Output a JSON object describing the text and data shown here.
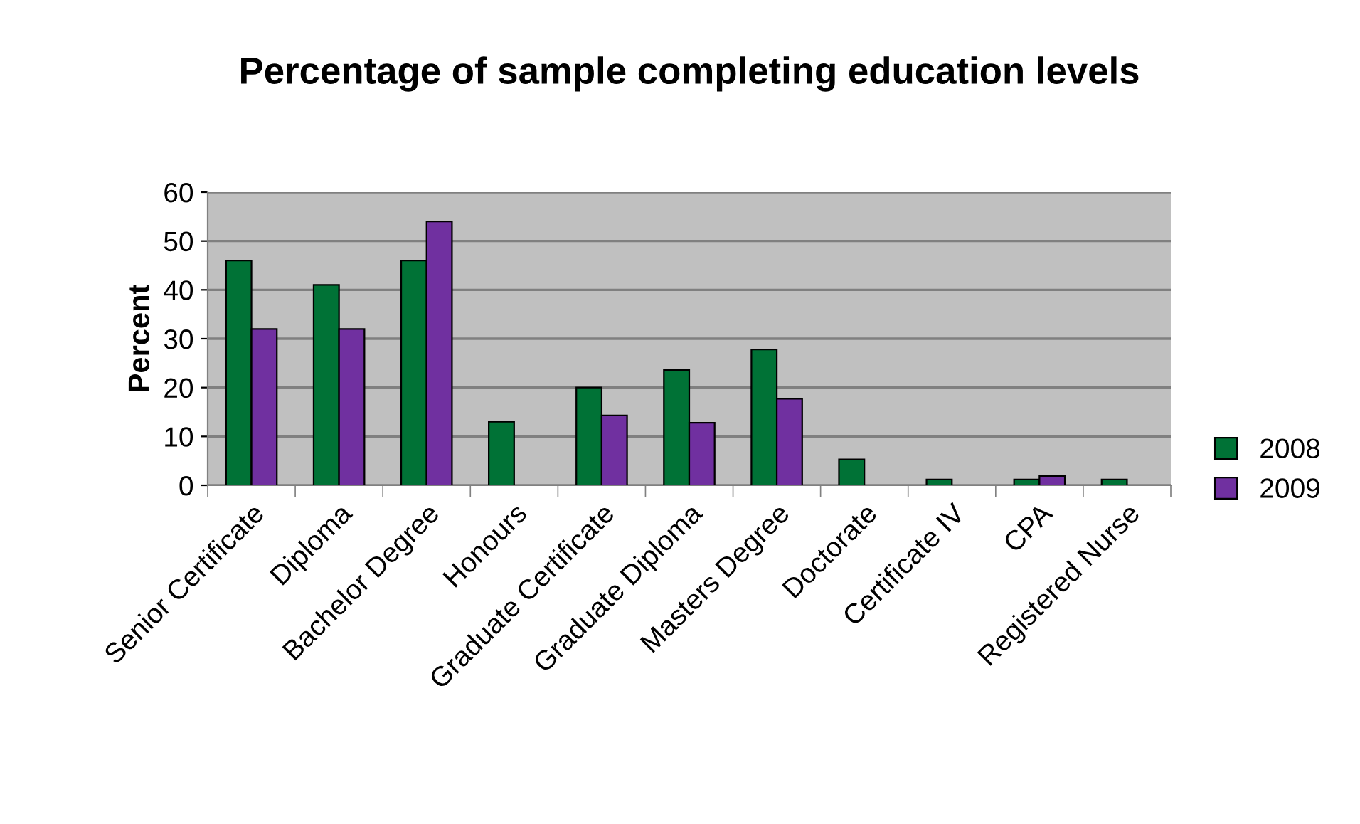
{
  "chart_data": {
    "type": "bar",
    "title": "Percentage of sample completing education levels",
    "ylabel": "Percent",
    "categories": [
      "Senior Certificate",
      "Diploma",
      "Bachelor Degree",
      "Honours",
      "Graduate Certificate",
      "Graduate Diploma",
      "Masters Degree",
      "Doctorate",
      "Certificate IV",
      "CPA",
      "Registered Nurse"
    ],
    "series": [
      {
        "name": "2008",
        "color": "#007236",
        "values": [
          46,
          41,
          46,
          13,
          20,
          23.6,
          27.8,
          5.3,
          1.2,
          1.2,
          1.2
        ]
      },
      {
        "name": "2009",
        "color": "#7030a0",
        "values": [
          32,
          32,
          54,
          null,
          14.3,
          12.8,
          17.7,
          null,
          null,
          1.9,
          null
        ]
      }
    ],
    "ylim": [
      0,
      60
    ],
    "yticks": [
      0,
      10,
      20,
      30,
      40,
      50,
      60
    ],
    "grid": "y",
    "legend": "right"
  }
}
